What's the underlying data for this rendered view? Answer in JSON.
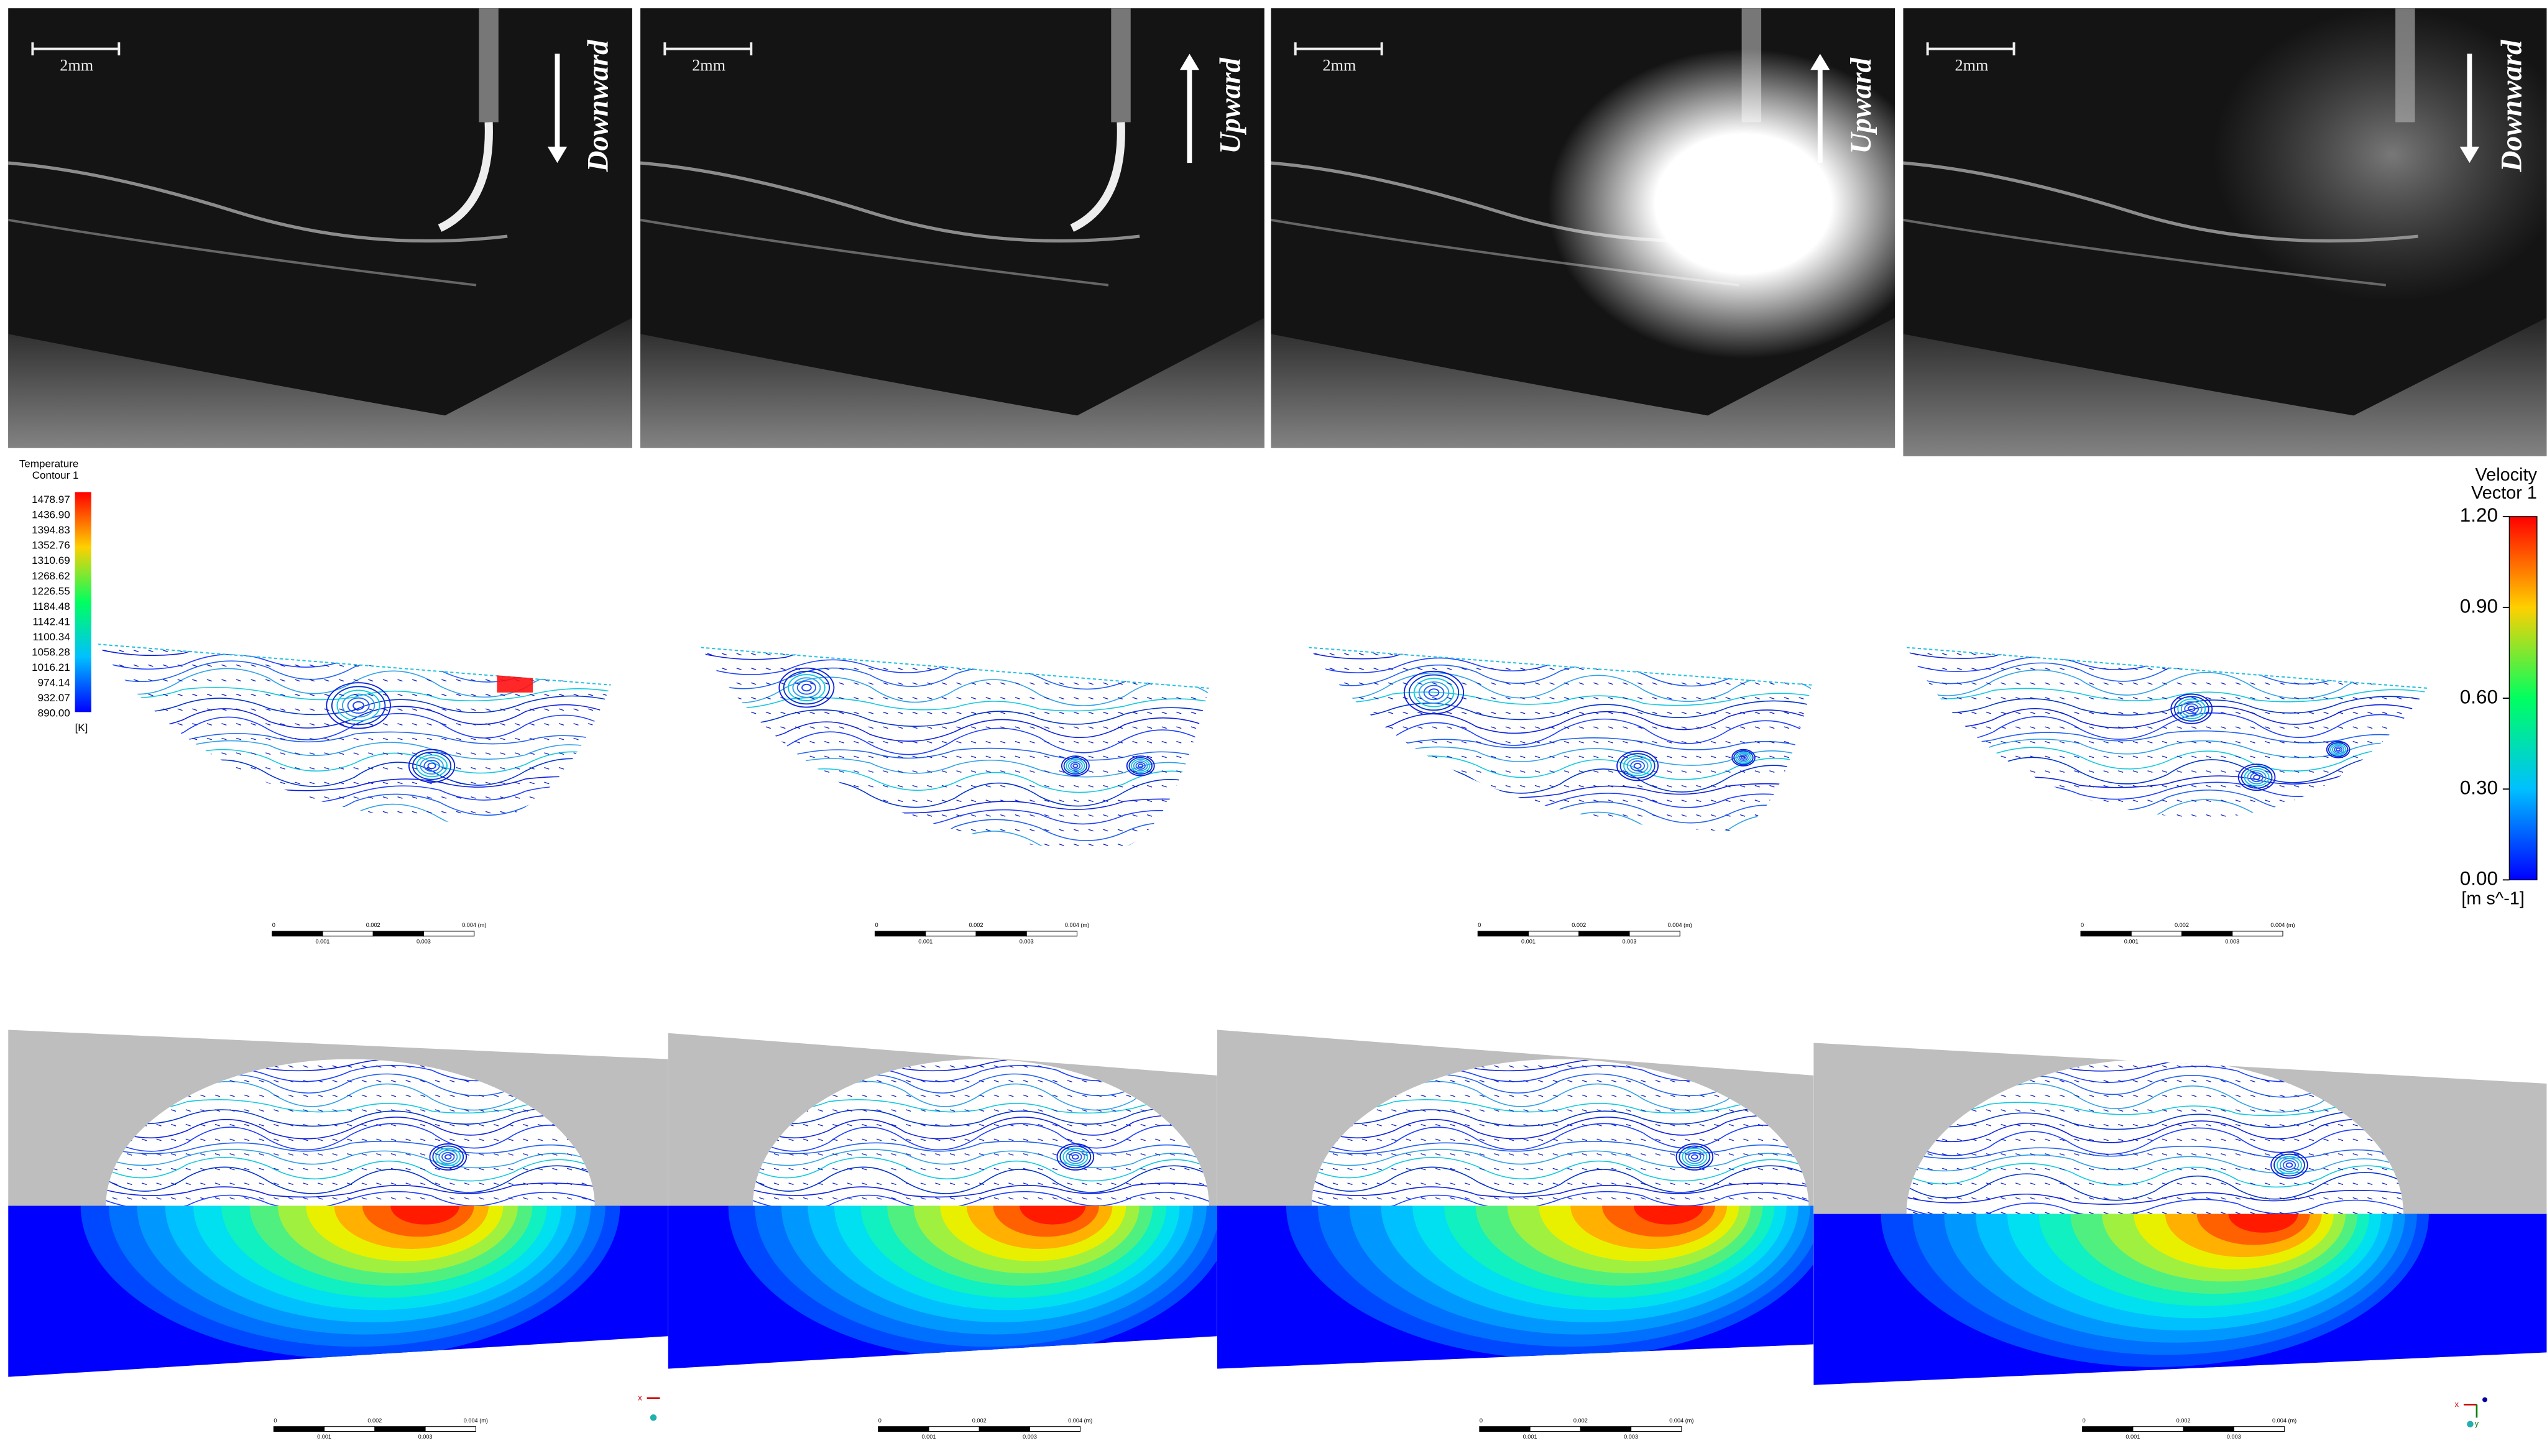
{
  "photos": [
    {
      "scale_label": "2mm",
      "direction": "Downward"
    },
    {
      "scale_label": "2mm",
      "direction": "Upward"
    },
    {
      "scale_label": "2mm",
      "direction": "Upward"
    },
    {
      "scale_label": "2mm",
      "direction": "Downward"
    }
  ],
  "temperature_legend": {
    "title": "Temperature",
    "subtitle": "Contour 1",
    "labels": [
      "1478.97",
      "1436.90",
      "1394.83",
      "1352.76",
      "1310.69",
      "1268.62",
      "1226.55",
      "1184.48",
      "1142.41",
      "1100.34",
      "1058.28",
      "1016.21",
      "974.14",
      "932.07",
      "890.00"
    ],
    "unit": "[K]"
  },
  "velocity_legend": {
    "title": "Velocity",
    "subtitle": "Vector 1",
    "labels": [
      "1.20",
      "0.90",
      "0.60",
      "0.30",
      "0.00"
    ],
    "unit": "[m s^-1]"
  },
  "scale_bars": {
    "middle": [
      {
        "labels": [
          "0",
          "0.002",
          "0.004 (m)",
          "0.001",
          "0.003"
        ]
      },
      {
        "labels": [
          "0",
          "0.002",
          "0.004 (m)",
          "0.001",
          "0.003"
        ]
      },
      {
        "labels": [
          "0",
          "0.002",
          "0.004 (m)",
          "0.001",
          "0.003"
        ]
      },
      {
        "labels": [
          "0",
          "0.002",
          "0.004 (m)",
          "0.001",
          "0.003"
        ]
      }
    ],
    "bottom": [
      {
        "labels": [
          "0",
          "0.002",
          "0.004 (m)",
          "0.001",
          "0.003"
        ]
      },
      {
        "labels": [
          "0",
          "0.002",
          "0.004 (m)",
          "0.001",
          "0.003"
        ]
      },
      {
        "labels": [
          "0",
          "0.002",
          "0.004 (m)",
          "0.001",
          "0.003"
        ]
      },
      {
        "labels": [
          "0",
          "0.002",
          "0.004 (m)",
          "0.001",
          "0.003"
        ]
      }
    ]
  },
  "axes_triads": [
    {
      "labels": [
        "x"
      ]
    },
    {
      "labels": [
        "x",
        "y"
      ]
    }
  ]
}
